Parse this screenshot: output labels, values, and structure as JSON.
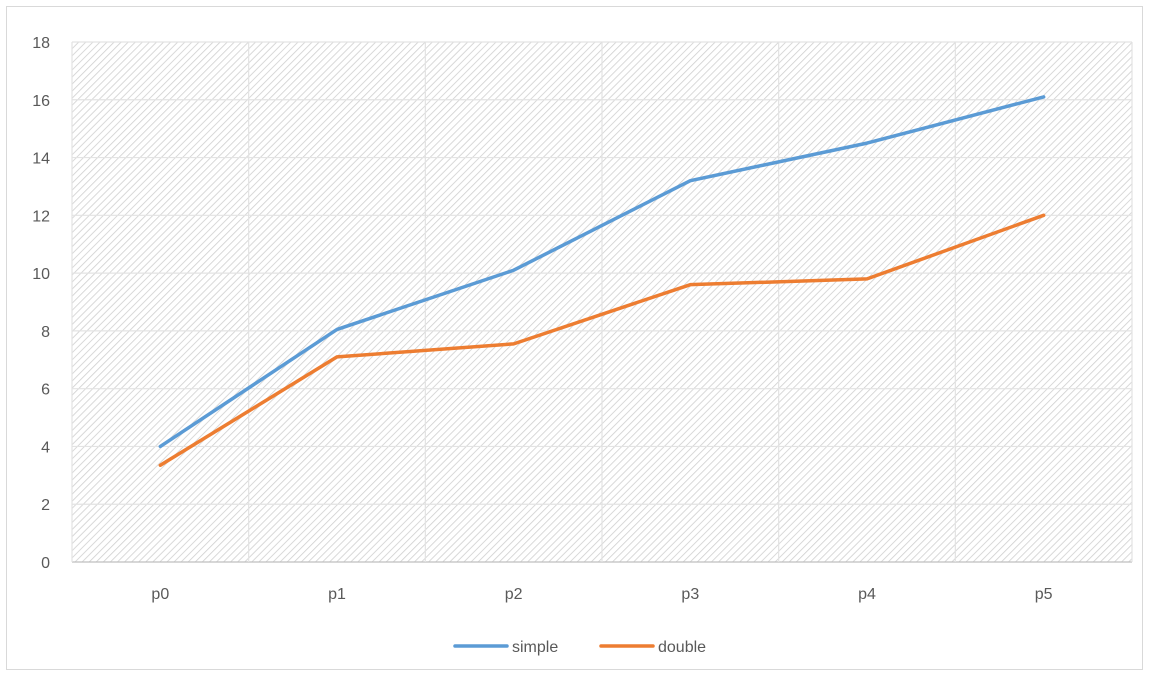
{
  "chart_data": {
    "type": "line",
    "title": "",
    "xlabel": "",
    "ylabel": "",
    "categories": [
      "p0",
      "p1",
      "p2",
      "p3",
      "p4",
      "p5"
    ],
    "ylim": [
      0,
      18
    ],
    "yticks": [
      0,
      2,
      4,
      6,
      8,
      10,
      12,
      14,
      16,
      18
    ],
    "grid": true,
    "plot_area_fill": "diagonal-hatch",
    "legend_position": "bottom",
    "series": [
      {
        "name": "simple",
        "color": "#5b9bd5",
        "values": [
          4.0,
          8.05,
          10.1,
          13.2,
          14.5,
          16.1
        ]
      },
      {
        "name": "double",
        "color": "#ed7d31",
        "values": [
          3.35,
          7.1,
          7.55,
          9.6,
          9.8,
          12.0
        ]
      }
    ]
  }
}
